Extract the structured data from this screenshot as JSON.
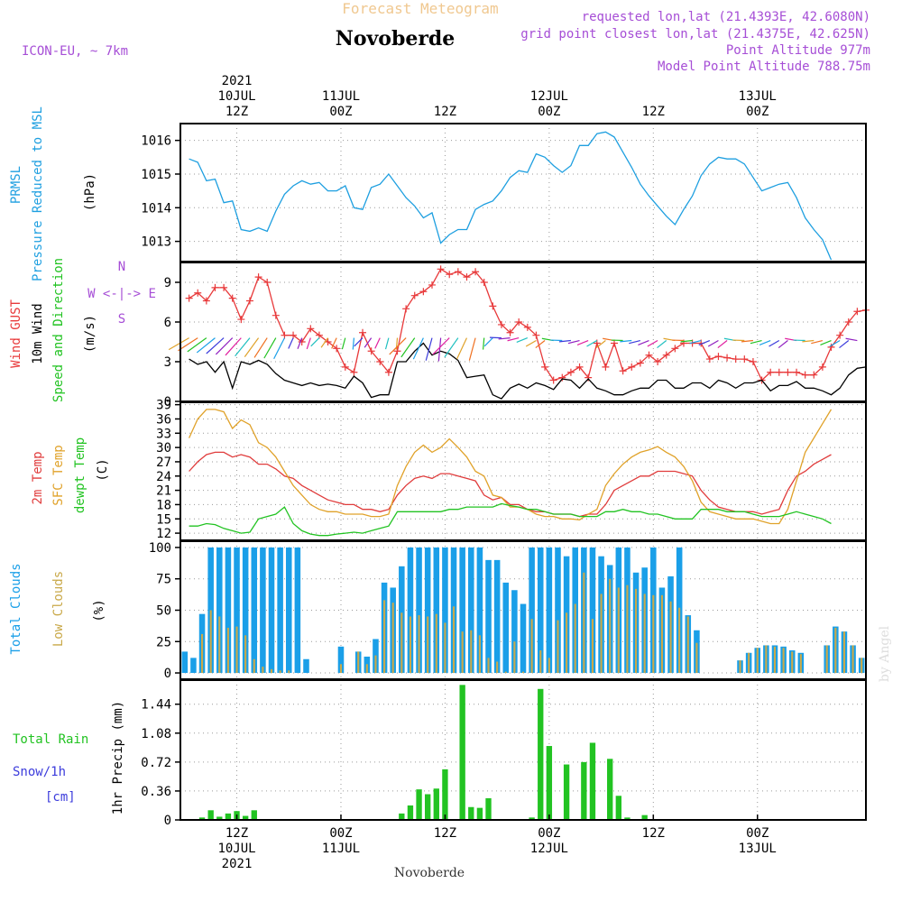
{
  "header": {
    "title": "Novoberde",
    "subtitle": "Forecast Meteogram",
    "model": "ICON-EU, ~ 7km",
    "requested": "requested lon,lat (21.4393E, 42.6080N)",
    "gridpoint": "grid point closest lon,lat (21.4375E, 42.625N)",
    "point_alt": "Point Altitude 977m",
    "model_alt": "Model Point Altitude 788.75m",
    "footer": "Novoberde",
    "watermark": "by Angel"
  },
  "colors": {
    "pressure": "#1e9fe0",
    "gust": "#e8393a",
    "wind": "#000000",
    "temp": "#e03c3c",
    "sfc": "#e0a22a",
    "dewpt": "#22c322",
    "total_clouds": "#1a9fe8",
    "low_clouds": "#c9a94a",
    "precip": "#22c322",
    "snow": "#3c3cdc",
    "purple": "#a64ed6"
  },
  "time_axis": {
    "top": [
      {
        "hour": 12,
        "lines": [
          "2021",
          "10JUL",
          "12Z"
        ]
      },
      {
        "hour": 24,
        "lines": [
          "11JUL",
          "00Z"
        ]
      },
      {
        "hour": 36,
        "lines": [
          "12Z"
        ]
      },
      {
        "hour": 48,
        "lines": [
          "12JUL",
          "00Z"
        ]
      },
      {
        "hour": 60,
        "lines": [
          "12Z"
        ]
      },
      {
        "hour": 72,
        "lines": [
          "13JUL",
          "00Z"
        ]
      }
    ],
    "bottom": [
      {
        "hour": 12,
        "lines": [
          "12Z",
          "10JUL",
          "2021"
        ]
      },
      {
        "hour": 24,
        "lines": [
          "00Z",
          "11JUL"
        ]
      },
      {
        "hour": 36,
        "lines": [
          "12Z"
        ]
      },
      {
        "hour": 48,
        "lines": [
          "00Z",
          "12JUL"
        ]
      },
      {
        "hour": 60,
        "lines": [
          "12Z"
        ]
      },
      {
        "hour": 72,
        "lines": [
          "00Z",
          "13JUL"
        ]
      }
    ]
  },
  "panels": {
    "pressure": {
      "labels": [
        "PRMSL",
        "Pressure Reduced to MSL",
        "(hPa)"
      ]
    },
    "wind": {
      "labels": [
        "Wind GUST",
        "10m Wind",
        "Speed and Direction",
        "(m/s)"
      ],
      "compass": [
        "N",
        "W <-|-> E",
        "S"
      ]
    },
    "temp": {
      "labels": [
        "2m Temp",
        "SFC Temp",
        "dewpt Temp",
        "(C)"
      ]
    },
    "clouds": {
      "labels": [
        "Total Clouds",
        "Low Clouds",
        "(%)"
      ]
    },
    "precip": {
      "labels": [
        "Total Rain",
        "Snow/1h",
        "[cm]",
        "1hr Precip (mm)"
      ]
    }
  },
  "chart_data": [
    {
      "type": "line",
      "name": "pressure",
      "x_start_hour": 6.5,
      "x_step_hours": 1,
      "ylim": [
        1012.4,
        1016.5
      ],
      "yticks": [
        1013,
        1014,
        1015,
        1016
      ],
      "series": [
        {
          "name": "PRMSL",
          "values": [
            1015.45,
            1015.35,
            1014.8,
            1014.85,
            1014.15,
            1014.2,
            1013.35,
            1013.3,
            1013.4,
            1013.3,
            1013.9,
            1014.4,
            1014.65,
            1014.8,
            1014.7,
            1014.75,
            1014.5,
            1014.5,
            1014.65,
            1014.0,
            1013.95,
            1014.6,
            1014.7,
            1015.0,
            1014.65,
            1014.3,
            1014.05,
            1013.7,
            1013.85,
            1012.95,
            1013.2,
            1013.35,
            1013.35,
            1013.95,
            1014.1,
            1014.2,
            1014.5,
            1014.9,
            1015.1,
            1015.05,
            1015.6,
            1015.5,
            1015.25,
            1015.05,
            1015.25,
            1015.85,
            1015.85,
            1016.2,
            1016.25,
            1016.1,
            1015.65,
            1015.2,
            1014.7,
            1014.35,
            1014.05,
            1013.75,
            1013.5,
            1013.95,
            1014.35,
            1014.95,
            1015.3,
            1015.5,
            1015.45,
            1015.45,
            1015.3,
            1014.9,
            1014.5,
            1014.6,
            1014.7,
            1014.75,
            1014.3,
            1013.7,
            1013.35,
            1013.05,
            1012.45
          ]
        }
      ]
    },
    {
      "type": "line",
      "name": "wind",
      "x_start_hour": 6.5,
      "x_step_hours": 1,
      "ylim": [
        0,
        10.5
      ],
      "yticks": [
        0,
        3,
        6,
        9
      ],
      "series": [
        {
          "name": "Wind GUST",
          "values": [
            7.8,
            8.2,
            7.6,
            8.6,
            8.6,
            7.8,
            6.2,
            7.6,
            9.4,
            9.0,
            6.5,
            5.0,
            5.0,
            4.5,
            5.5,
            5.0,
            4.5,
            4.0,
            2.6,
            2.2,
            5.2,
            3.8,
            3.0,
            2.2,
            3.8,
            7.0,
            8.0,
            8.3,
            8.8,
            10.0,
            9.6,
            9.8,
            9.4,
            9.8,
            9.0,
            7.2,
            5.8,
            5.2,
            6.0,
            5.6,
            5.0,
            2.6,
            1.6,
            1.8,
            2.2,
            2.6,
            1.8,
            4.4,
            2.6,
            4.4,
            2.3,
            2.6,
            2.9,
            3.5,
            3.0,
            3.5,
            4.0,
            4.4,
            4.4,
            4.4,
            3.2,
            3.4,
            3.3,
            3.2,
            3.2,
            3.0,
            1.6,
            2.2,
            2.2,
            2.2,
            2.2,
            2.0,
            2.0,
            2.6,
            4.1,
            5.0,
            6.0,
            6.8,
            6.9
          ]
        },
        {
          "name": "10m Wind",
          "values": [
            3.2,
            2.8,
            3.0,
            2.2,
            3.0,
            1.0,
            3.0,
            2.8,
            3.1,
            2.8,
            2.1,
            1.6,
            1.4,
            1.2,
            1.4,
            1.2,
            1.3,
            1.2,
            1.0,
            1.9,
            1.4,
            0.3,
            0.5,
            0.5,
            3.0,
            3.0,
            3.8,
            4.4,
            3.5,
            3.8,
            3.6,
            3.1,
            1.8,
            1.9,
            2.0,
            0.5,
            0.2,
            1.0,
            1.3,
            1.0,
            1.4,
            1.2,
            0.9,
            1.7,
            1.6,
            1.0,
            1.7,
            1.0,
            0.8,
            0.5,
            0.5,
            0.8,
            1.0,
            1.0,
            1.6,
            1.6,
            1.0,
            1.0,
            1.4,
            1.4,
            1.0,
            1.6,
            1.4,
            1.0,
            1.4,
            1.4,
            1.6,
            0.8,
            1.2,
            1.2,
            1.5,
            1.0,
            1.0,
            0.8,
            0.5,
            1.0,
            2.0,
            2.5,
            2.6
          ]
        }
      ]
    },
    {
      "type": "line",
      "name": "temperature",
      "x_start_hour": 6.5,
      "x_step_hours": 1,
      "ylim": [
        10.5,
        39.5
      ],
      "yticks": [
        12,
        15,
        18,
        21,
        24,
        27,
        30,
        33,
        36,
        39
      ],
      "series": [
        {
          "name": "2m Temp",
          "values": [
            25,
            27,
            28.5,
            29,
            29,
            28,
            28.5,
            28,
            26.5,
            26.5,
            25.5,
            24,
            23.5,
            22,
            21,
            20,
            19,
            18.5,
            18,
            18,
            17,
            17,
            16.5,
            17,
            20,
            22,
            23.5,
            24,
            23.5,
            24.5,
            24.5,
            24,
            23.5,
            23,
            20,
            19,
            19.5,
            18,
            18,
            17,
            16.5,
            16.5,
            16,
            16,
            16,
            15.5,
            16,
            16,
            18,
            21,
            22,
            23,
            24,
            24,
            25,
            25,
            25,
            24.5,
            24,
            21,
            19,
            17.5,
            17,
            16.5,
            16.5,
            16.5,
            16,
            16.5,
            17,
            21,
            24,
            25,
            26.5,
            27.5,
            28.5
          ]
        },
        {
          "name": "SFC Temp",
          "values": [
            32,
            36,
            38,
            38,
            37.5,
            34,
            35.8,
            34.8,
            31,
            30,
            28,
            25,
            22,
            20,
            18,
            17,
            16.5,
            16.5,
            16,
            16,
            16,
            15.5,
            15.5,
            16,
            22,
            26,
            29,
            30.5,
            29,
            30,
            31.8,
            30,
            28,
            25,
            24,
            20,
            19.5,
            17.5,
            17.5,
            17,
            16,
            15.5,
            15.5,
            15,
            15,
            14.8,
            16,
            17,
            22,
            24.5,
            26.5,
            28,
            29,
            29.5,
            30.2,
            29,
            28,
            26,
            23,
            18.5,
            16.5,
            16,
            15.5,
            15,
            15,
            15,
            14.5,
            14,
            14,
            17,
            23,
            29,
            32,
            35,
            38
          ]
        },
        {
          "name": "dewpt Temp",
          "values": [
            13.5,
            13.5,
            14,
            13.8,
            13,
            12.5,
            12,
            12.2,
            15,
            15.5,
            16,
            17.5,
            14,
            12.5,
            11.8,
            11.5,
            11.5,
            11.8,
            12,
            12.2,
            12,
            12.5,
            13,
            13.5,
            16.5,
            16.5,
            16.5,
            16.5,
            16.5,
            16.5,
            17,
            17,
            17.5,
            17.5,
            17.5,
            17.5,
            18.2,
            17.8,
            17.5,
            17,
            17,
            16.5,
            16,
            16,
            16,
            15.5,
            15.5,
            15.5,
            16.5,
            16.5,
            17,
            16.5,
            16.5,
            16,
            16,
            15.5,
            15,
            15,
            15,
            17,
            17,
            17,
            16.5,
            16.5,
            16.5,
            16,
            15.5,
            15.5,
            15.5,
            16,
            16.5,
            16,
            15.5,
            15,
            14
          ]
        }
      ]
    },
    {
      "type": "bar",
      "name": "clouds",
      "x_start_hour": 6,
      "x_step_hours": 1,
      "ylim": [
        -5,
        105
      ],
      "yticks": [
        0,
        25,
        50,
        75,
        100
      ],
      "series": [
        {
          "name": "Total Clouds",
          "values": [
            17,
            12,
            47,
            100,
            100,
            100,
            100,
            100,
            100,
            100,
            100,
            100,
            100,
            100,
            11,
            0,
            0,
            0,
            21,
            0,
            17,
            13,
            27,
            72,
            68,
            85,
            100,
            100,
            100,
            100,
            100,
            100,
            100,
            100,
            100,
            90,
            90,
            72,
            66,
            55,
            100,
            100,
            100,
            100,
            93,
            100,
            100,
            100,
            93,
            86,
            100,
            100,
            80,
            84,
            100,
            68,
            77,
            100,
            46,
            34,
            0,
            0,
            0,
            0,
            10,
            16,
            20,
            22,
            22,
            21,
            18,
            16,
            0,
            0,
            22,
            37,
            33,
            22,
            12
          ]
        },
        {
          "name": "Low Clouds",
          "values": [
            0,
            0,
            31,
            50,
            45,
            36,
            37,
            30,
            11,
            5,
            3,
            2,
            2,
            0,
            0,
            0,
            0,
            0,
            7,
            0,
            17,
            7,
            14,
            58,
            56,
            48,
            45,
            46,
            45,
            47,
            40,
            53,
            33,
            34,
            30,
            12,
            9,
            1,
            25,
            1,
            43,
            18,
            12,
            42,
            48,
            55,
            80,
            43,
            63,
            75,
            68,
            70,
            67,
            63,
            62,
            62,
            57,
            52,
            45,
            24,
            0,
            0,
            0,
            0,
            10,
            16,
            20,
            22,
            21,
            20,
            17,
            15,
            0,
            0,
            22,
            36,
            33,
            22,
            12
          ]
        }
      ]
    },
    {
      "type": "bar",
      "name": "precip",
      "x_start_hour": 6,
      "x_step_hours": 1,
      "ylim": [
        0,
        1.74
      ],
      "yticks": [
        0,
        0.36,
        0.72,
        1.08,
        1.44
      ],
      "series": [
        {
          "name": "Total Rain",
          "values": [
            0,
            0,
            0.03,
            0.12,
            0.04,
            0.08,
            0.11,
            0.05,
            0.12,
            0,
            0,
            0,
            0,
            0,
            0,
            0,
            0,
            0,
            0,
            0,
            0,
            0,
            0,
            0,
            0,
            0.08,
            0.18,
            0.38,
            0.32,
            0.39,
            0.63,
            0,
            1.68,
            0.16,
            0.15,
            0.27,
            0,
            0,
            0,
            0,
            0.03,
            1.63,
            0.92,
            0,
            0.69,
            0,
            0.72,
            0.96,
            0,
            0.76,
            0.3,
            0.03,
            0,
            0.06,
            0,
            0,
            0,
            0,
            0,
            0,
            0,
            0,
            0,
            0,
            0,
            0,
            0,
            0,
            0,
            0,
            0,
            0,
            0,
            0,
            0,
            0,
            0,
            0,
            0
          ]
        }
      ]
    }
  ]
}
